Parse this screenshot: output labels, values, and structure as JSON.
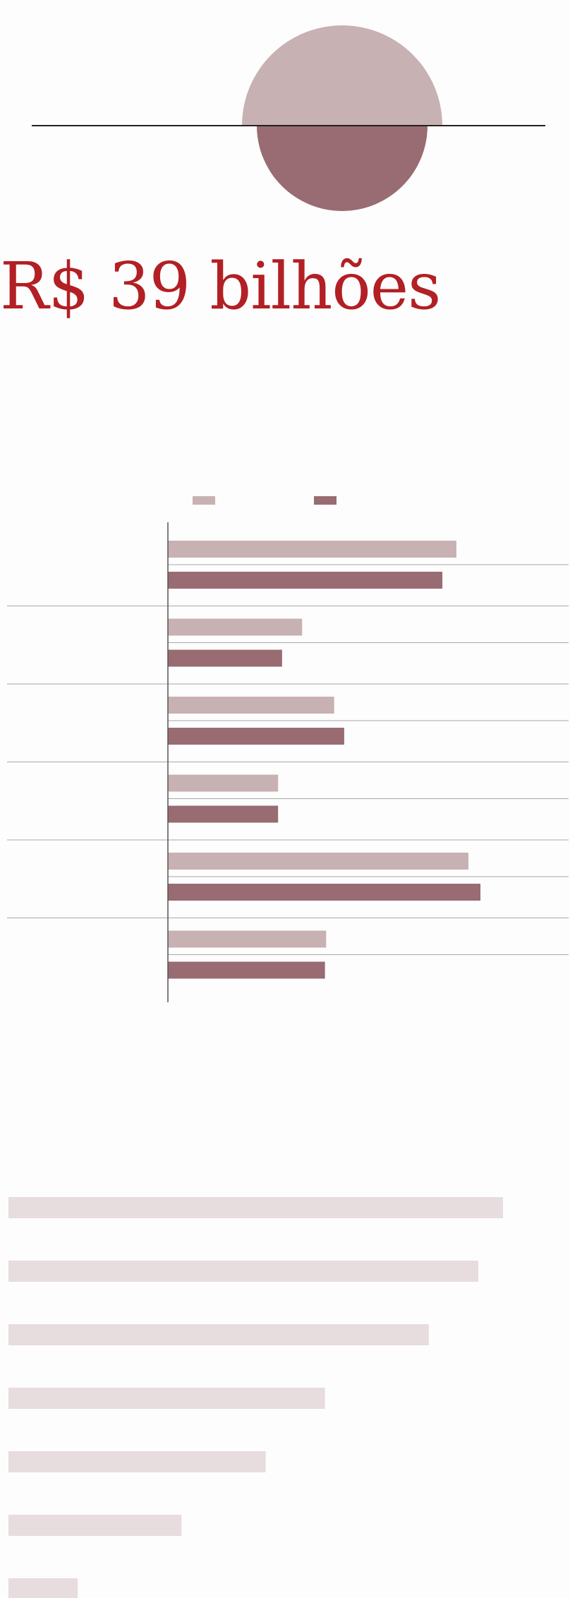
{
  "headline": "R$ 39 bilhões",
  "colors": {
    "background": "#fefdfd",
    "headline": "#b21f24",
    "series_light": "#c8b1b3",
    "series_dark": "#986c72",
    "ranking_bar": "#e7dcde",
    "axis": "#555555",
    "divider": "#a8a8a8",
    "hero_line": "#222222"
  },
  "hero": {
    "upper_circle_color": "#c8b1b3",
    "lower_circle_color": "#986c72"
  },
  "legend": {
    "series": [
      {
        "color": "#c8b1b3"
      },
      {
        "color": "#986c72"
      }
    ]
  },
  "chart_data": [
    {
      "type": "bar",
      "orientation": "horizontal",
      "categories": [
        "",
        "",
        "",
        "",
        "",
        ""
      ],
      "series": [
        {
          "color": "#c8b1b3",
          "values": [
            72,
            33.5,
            41.5,
            27.5,
            75,
            39.5
          ]
        },
        {
          "color": "#986c72",
          "values": [
            68.5,
            28.5,
            44,
            27.5,
            78,
            39.2
          ]
        }
      ],
      "xlim": [
        0,
        100
      ],
      "grid": false
    },
    {
      "type": "bar",
      "orientation": "horizontal",
      "categories": [
        "",
        "",
        "",
        "",
        "",
        "",
        ""
      ],
      "values": [
        100,
        95,
        85,
        64,
        52,
        35,
        14
      ],
      "xlim": [
        0,
        100
      ],
      "grid": false
    }
  ]
}
